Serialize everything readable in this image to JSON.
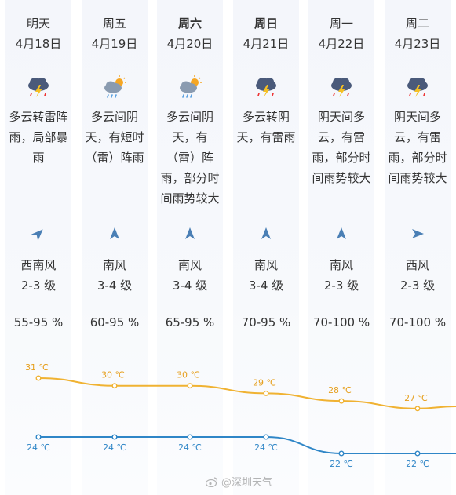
{
  "days": [
    {
      "day": "明天",
      "bold": false,
      "date": "4月18日",
      "icon": "thunderstorm-cloud-icon",
      "desc": "多云转雷阵\n雨，局部暴\n雨",
      "wind_dir": "西南风",
      "wind_level": "2-3 级",
      "humidity": "55-95 %",
      "hi": 31,
      "hi_label": "31 ℃",
      "lo": 24,
      "lo_label": "24 ℃",
      "arrow": "northeast-arrow-icon"
    },
    {
      "day": "周五",
      "bold": false,
      "date": "4月19日",
      "icon": "sun-cloud-rain-icon",
      "desc": "多云间阴\n天，有短时\n（雷）阵雨",
      "wind_dir": "南风",
      "wind_level": "3-4 级",
      "humidity": "60-95 %",
      "hi": 30,
      "hi_label": "30 ℃",
      "lo": 24,
      "lo_label": "24 ℃",
      "arrow": "north-arrow-icon"
    },
    {
      "day": "周六",
      "bold": true,
      "date": "4月20日",
      "icon": "sun-cloud-rain-icon",
      "desc": "多云间阴\n天，有\n（雷）阵\n雨，部分时\n间雨势较大",
      "wind_dir": "南风",
      "wind_level": "3-4 级",
      "humidity": "65-95 %",
      "hi": 30,
      "hi_label": "30 ℃",
      "lo": 24,
      "lo_label": "24 ℃",
      "arrow": "north-arrow-icon"
    },
    {
      "day": "周日",
      "bold": true,
      "date": "4月21日",
      "icon": "thunderstorm-cloud-icon",
      "desc": "多云转阴\n天，有雷雨",
      "wind_dir": "南风",
      "wind_level": "3-4 级",
      "humidity": "70-95 %",
      "hi": 29,
      "hi_label": "29 ℃",
      "lo": 24,
      "lo_label": "24 ℃",
      "arrow": "north-arrow-icon"
    },
    {
      "day": "周一",
      "bold": false,
      "date": "4月22日",
      "icon": "thunderstorm-cloud-icon",
      "desc": "阴天间多\n云，有雷\n雨，部分时\n间雨势较大",
      "wind_dir": "南风",
      "wind_level": "2-3 级",
      "humidity": "70-100 %",
      "hi": 28,
      "hi_label": "28 ℃",
      "lo": 22,
      "lo_label": "22 ℃",
      "arrow": "north-arrow-icon"
    },
    {
      "day": "周二",
      "bold": false,
      "date": "4月23日",
      "icon": "thunderstorm-cloud-icon",
      "desc": "阴天间多\n云，有雷\n雨，部分时\n间雨势较大",
      "wind_dir": "西风",
      "wind_level": "2-3 级",
      "humidity": "70-100 %",
      "hi": 27,
      "hi_label": "27 ℃",
      "lo": 22,
      "lo_label": "22 ℃",
      "arrow": "east-arrow-icon"
    }
  ],
  "colors": {
    "high_line": "#f0b232",
    "low_line": "#2f86c7",
    "high_text": "#e6a020",
    "low_text": "#2f86c7",
    "arrow": "#4a7fb5"
  },
  "watermark": "@深圳天气"
}
